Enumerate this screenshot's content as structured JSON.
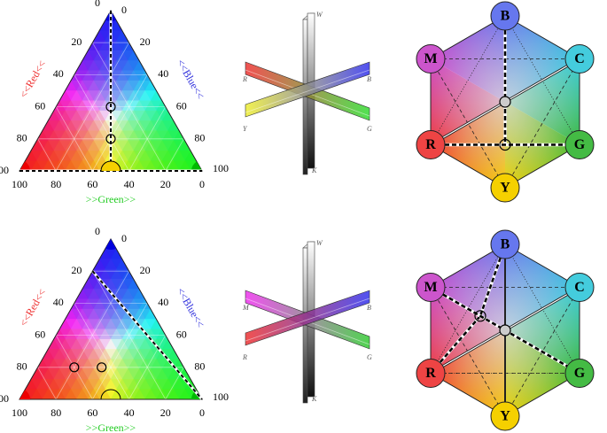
{
  "panels": [
    {
      "ternary": {
        "left_ticks": [
          0,
          20,
          40,
          60,
          80,
          100
        ],
        "right_ticks": [
          100,
          80,
          60,
          40,
          20,
          0
        ],
        "bottom_ticks": [
          0,
          20,
          40,
          60,
          80,
          100
        ],
        "left_label": "<<Red<<",
        "right_label": "<<Blue<<",
        "bottom_label": ">>Green>>"
      },
      "bars": {
        "top": "W",
        "bottom": "K",
        "left_top": "R",
        "right_top": "B",
        "left_bottom": "Y",
        "right_bottom": "G"
      },
      "hexagon": {
        "nodes": [
          "B",
          "C",
          "G",
          "Y",
          "R",
          "M"
        ]
      }
    },
    {
      "ternary": {
        "left_ticks": [
          0,
          20,
          40,
          60,
          80,
          100
        ],
        "right_ticks": [
          100,
          80,
          60,
          40,
          20,
          0
        ],
        "bottom_ticks": [
          0,
          20,
          40,
          60,
          80,
          100
        ],
        "left_label": "<<Red<<",
        "right_label": "<<Blue<<",
        "bottom_label": ">>Green>>"
      },
      "bars": {
        "top": "W",
        "bottom": "K",
        "left_top": "M",
        "right_top": "B",
        "left_bottom": "R",
        "right_bottom": "G"
      },
      "hexagon": {
        "nodes": [
          "B",
          "C",
          "G",
          "Y",
          "R",
          "M"
        ]
      }
    }
  ]
}
